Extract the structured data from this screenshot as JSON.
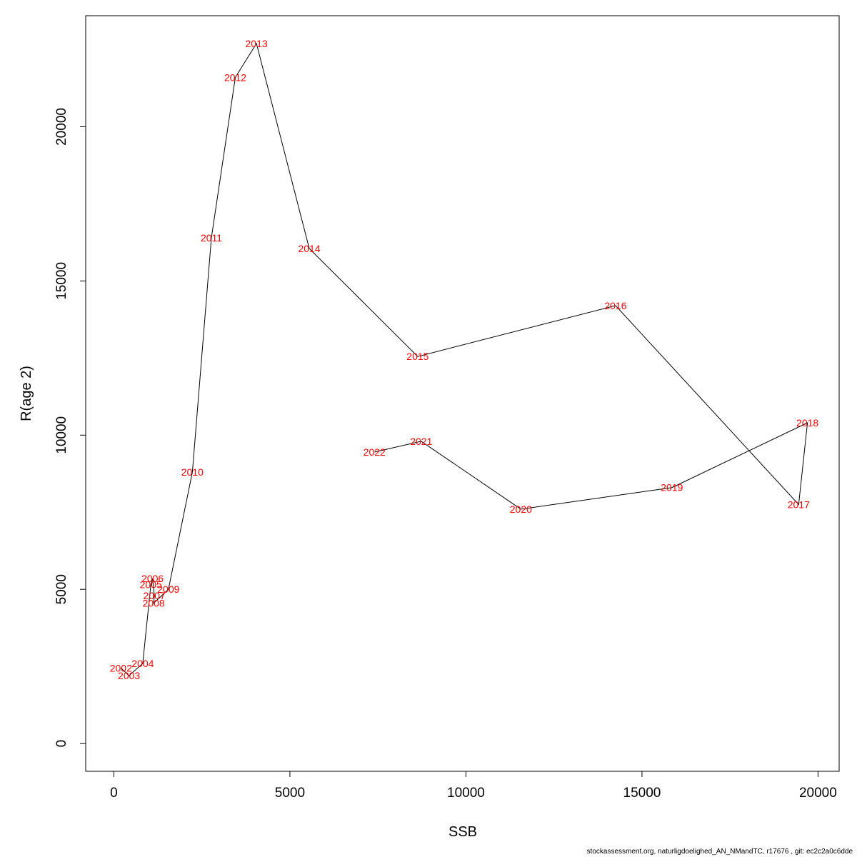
{
  "chart_data": {
    "type": "line",
    "xlabel": "SSB",
    "ylabel": "R(age 2)",
    "xlim": [
      -800,
      20600
    ],
    "ylim": [
      -900,
      23600
    ],
    "xticks": [
      0,
      5000,
      10000,
      15000,
      20000
    ],
    "yticks": [
      0,
      5000,
      10000,
      15000,
      20000
    ],
    "line_color": "#000000",
    "label_color": "#ff0000",
    "points": [
      {
        "label": "2002",
        "x": 200,
        "y": 2450
      },
      {
        "label": "2003",
        "x": 430,
        "y": 2200
      },
      {
        "label": "2004",
        "x": 820,
        "y": 2600
      },
      {
        "label": "2005",
        "x": 1050,
        "y": 5150
      },
      {
        "label": "2006",
        "x": 1100,
        "y": 5350
      },
      {
        "label": "2007",
        "x": 1150,
        "y": 4800
      },
      {
        "label": "2008",
        "x": 1130,
        "y": 4550
      },
      {
        "label": "2009",
        "x": 1550,
        "y": 5000
      },
      {
        "label": "2010",
        "x": 2230,
        "y": 8800
      },
      {
        "label": "2011",
        "x": 2770,
        "y": 16400
      },
      {
        "label": "2012",
        "x": 3450,
        "y": 21600
      },
      {
        "label": "2013",
        "x": 4050,
        "y": 22700
      },
      {
        "label": "2014",
        "x": 5550,
        "y": 16050
      },
      {
        "label": "2015",
        "x": 8630,
        "y": 12550
      },
      {
        "label": "2016",
        "x": 14250,
        "y": 14200
      },
      {
        "label": "2017",
        "x": 19450,
        "y": 7750
      },
      {
        "label": "2018",
        "x": 19700,
        "y": 10400
      },
      {
        "label": "2019",
        "x": 15850,
        "y": 8300
      },
      {
        "label": "2020",
        "x": 11560,
        "y": 7600
      },
      {
        "label": "2021",
        "x": 8730,
        "y": 9800
      },
      {
        "label": "2022",
        "x": 7400,
        "y": 9450
      }
    ]
  },
  "footer_text": "stockassessment.org, naturligdoelighed_AN_NMandTC, r17676 , git: ec2c2a0c6dde"
}
